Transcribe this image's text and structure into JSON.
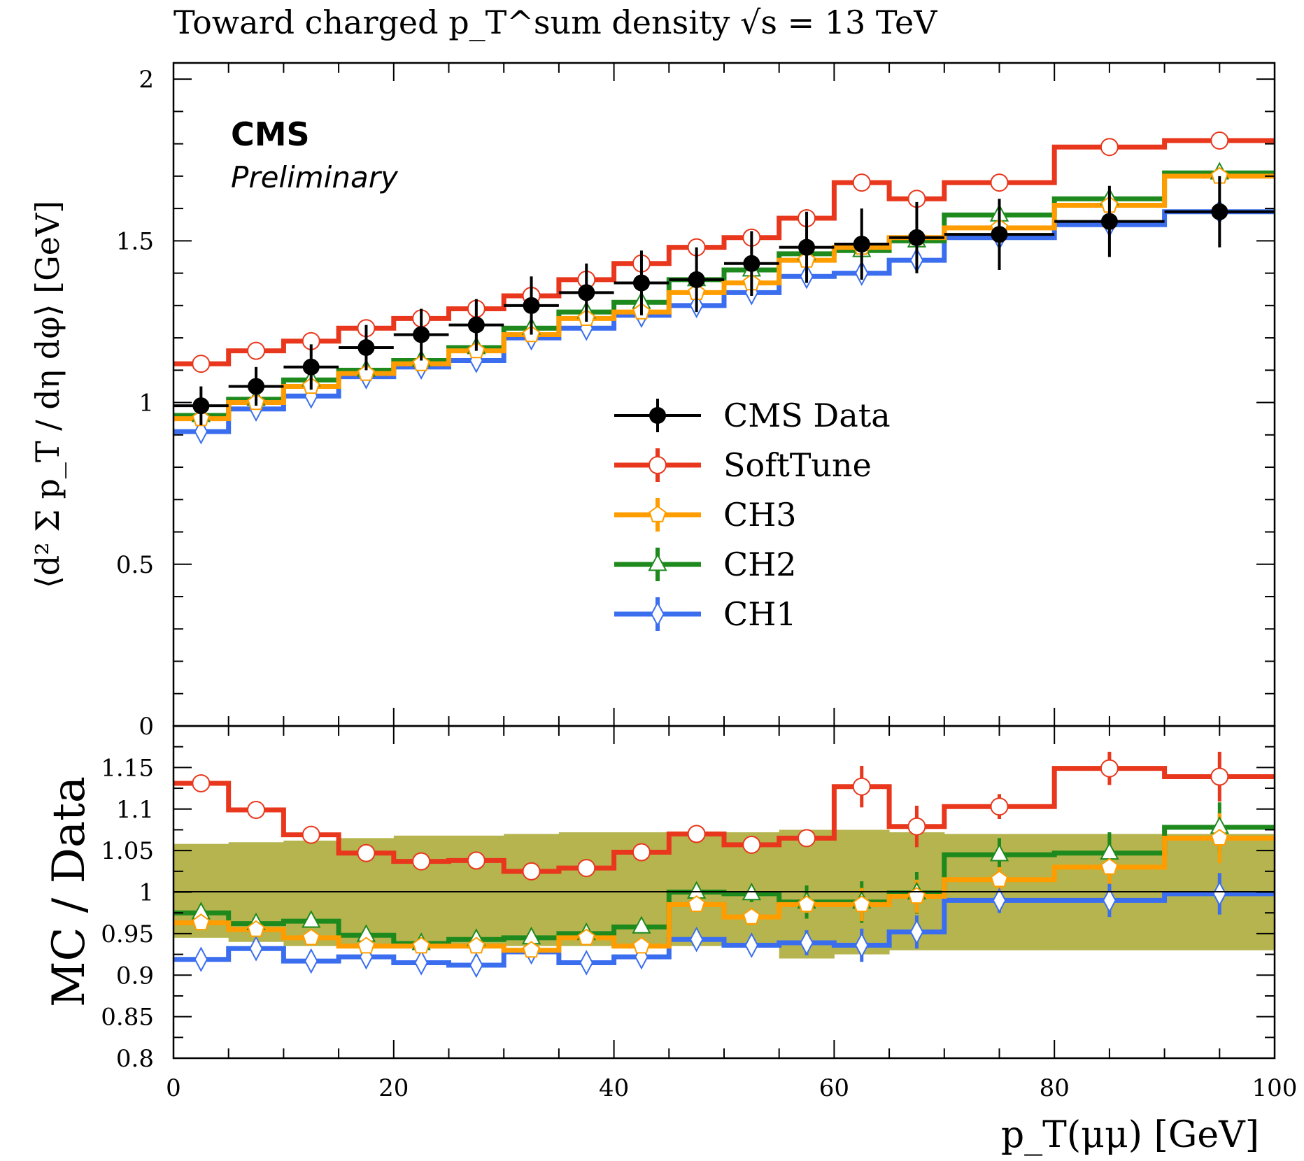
{
  "title": "Toward charged p_T^sum density √s = 13 TeV",
  "experiment_label": "CMS",
  "status_label": "Preliminary",
  "colors": {
    "data": "#000000",
    "SoftTune": "#e8371c",
    "CH3": "#ff9d00",
    "CH2": "#1e8a1e",
    "CH1": "#3a6eef",
    "band": "#b5b44e"
  },
  "chart_data": [
    {
      "type": "line",
      "panel": "main",
      "title": "Toward charged p_T^sum density √s = 13 TeV",
      "ylabel": "⟨d² Σ p_T / dη dφ⟩ [GeV]",
      "xlim": [
        0,
        100
      ],
      "ylim": [
        0,
        2.05
      ],
      "x_tick_labels": [],
      "y_tick_labels": [
        "0",
        "0.5",
        "1",
        "1.5",
        "2"
      ],
      "legend_position": "center-right",
      "bin_edges": [
        0,
        5,
        10,
        15,
        20,
        25,
        30,
        35,
        40,
        45,
        50,
        55,
        60,
        65,
        70,
        80,
        90,
        100
      ],
      "series": [
        {
          "name": "CMS Data",
          "marker": "filled-circle",
          "values": [
            0.99,
            1.05,
            1.11,
            1.17,
            1.21,
            1.24,
            1.3,
            1.34,
            1.37,
            1.38,
            1.43,
            1.48,
            1.49,
            1.51,
            1.52,
            1.56,
            1.59
          ],
          "errors": [
            0.06,
            0.06,
            0.07,
            0.07,
            0.08,
            0.08,
            0.09,
            0.09,
            0.1,
            0.1,
            0.1,
            0.11,
            0.11,
            0.11,
            0.11,
            0.11,
            0.11
          ]
        },
        {
          "name": "SoftTune",
          "marker": "open-circle",
          "values": [
            1.12,
            1.16,
            1.19,
            1.23,
            1.26,
            1.29,
            1.33,
            1.38,
            1.43,
            1.48,
            1.51,
            1.57,
            1.68,
            1.63,
            1.68,
            1.79,
            1.81
          ]
        },
        {
          "name": "CH3",
          "marker": "open-pentagon",
          "values": [
            0.95,
            1.0,
            1.05,
            1.09,
            1.12,
            1.16,
            1.21,
            1.26,
            1.28,
            1.34,
            1.37,
            1.44,
            1.48,
            1.51,
            1.54,
            1.61,
            1.7
          ]
        },
        {
          "name": "CH2",
          "marker": "open-triangle",
          "values": [
            0.96,
            1.01,
            1.07,
            1.1,
            1.13,
            1.17,
            1.23,
            1.28,
            1.31,
            1.38,
            1.41,
            1.46,
            1.47,
            1.5,
            1.58,
            1.63,
            1.71
          ]
        },
        {
          "name": "CH1",
          "marker": "open-diamond",
          "values": [
            0.91,
            0.98,
            1.02,
            1.08,
            1.11,
            1.13,
            1.2,
            1.23,
            1.27,
            1.3,
            1.34,
            1.39,
            1.4,
            1.44,
            1.51,
            1.55,
            1.59
          ]
        }
      ]
    },
    {
      "type": "line",
      "panel": "ratio",
      "xlabel": "p_T(μμ) [GeV]",
      "ylabel": "MC / Data",
      "xlim": [
        0,
        100
      ],
      "ylim": [
        0.8,
        1.2
      ],
      "x_tick_labels": [
        "0",
        "20",
        "40",
        "60",
        "80",
        "100"
      ],
      "y_tick_labels": [
        "0.8",
        "0.85",
        "0.9",
        "0.95",
        "1",
        "1.05",
        "1.1",
        "1.15"
      ],
      "reference_line": 1.0,
      "bin_edges": [
        0,
        5,
        10,
        15,
        20,
        25,
        30,
        35,
        40,
        45,
        50,
        55,
        60,
        65,
        70,
        80,
        90,
        100
      ],
      "band": {
        "lower": [
          0.945,
          0.94,
          0.935,
          0.935,
          0.935,
          0.935,
          0.935,
          0.935,
          0.935,
          0.935,
          0.935,
          0.92,
          0.925,
          0.93,
          0.93,
          0.93,
          0.93
        ],
        "upper": [
          1.058,
          1.06,
          1.062,
          1.065,
          1.068,
          1.068,
          1.07,
          1.072,
          1.072,
          1.072,
          1.072,
          1.075,
          1.075,
          1.072,
          1.07,
          1.07,
          1.07
        ]
      },
      "series": [
        {
          "name": "SoftTune",
          "marker": "open-circle",
          "values": [
            1.131,
            1.099,
            1.069,
            1.047,
            1.037,
            1.038,
            1.025,
            1.029,
            1.048,
            1.07,
            1.057,
            1.065,
            1.127,
            1.079,
            1.103,
            1.149,
            1.139
          ],
          "errors": [
            0,
            0,
            0,
            0,
            0,
            0,
            0,
            0,
            0,
            0,
            0.01,
            0.01,
            0.025,
            0.025,
            0.015,
            0.02,
            0.03
          ]
        },
        {
          "name": "CH3",
          "marker": "open-pentagon",
          "values": [
            0.963,
            0.955,
            0.945,
            0.935,
            0.935,
            0.935,
            0.93,
            0.945,
            0.935,
            0.985,
            0.97,
            0.985,
            0.985,
            0.995,
            1.015,
            1.03,
            1.065
          ],
          "errors": [
            0,
            0,
            0,
            0,
            0,
            0,
            0,
            0,
            0,
            0,
            0.01,
            0.01,
            0.02,
            0.02,
            0.015,
            0.02,
            0.03
          ]
        },
        {
          "name": "CH2",
          "marker": "open-triangle",
          "values": [
            0.975,
            0.962,
            0.965,
            0.948,
            0.938,
            0.943,
            0.945,
            0.95,
            0.958,
            1.0,
            0.998,
            0.988,
            0.988,
            0.999,
            1.045,
            1.047,
            1.078
          ],
          "errors": [
            0,
            0,
            0,
            0,
            0,
            0,
            0,
            0,
            0,
            0.01,
            0.01,
            0.02,
            0.025,
            0.025,
            0.02,
            0.025,
            0.03
          ]
        },
        {
          "name": "CH1",
          "marker": "open-diamond",
          "values": [
            0.919,
            0.932,
            0.917,
            0.922,
            0.915,
            0.912,
            0.928,
            0.915,
            0.922,
            0.943,
            0.936,
            0.939,
            0.936,
            0.952,
            0.99,
            0.99,
            0.998
          ],
          "errors": [
            0,
            0,
            0,
            0,
            0,
            0,
            0,
            0,
            0,
            0.01,
            0.01,
            0.015,
            0.02,
            0.02,
            0.015,
            0.02,
            0.025
          ]
        }
      ]
    }
  ]
}
